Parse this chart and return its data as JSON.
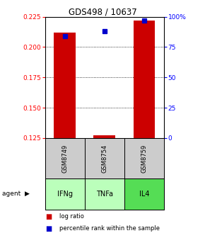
{
  "title": "GDS498 / 10637",
  "samples": [
    "GSM8749",
    "GSM8754",
    "GSM8759"
  ],
  "agents": [
    "IFNg",
    "TNFa",
    "IL4"
  ],
  "log_ratio": [
    0.212,
    0.127,
    0.222
  ],
  "percentile": [
    84,
    88,
    97
  ],
  "ylim_left": [
    0.125,
    0.225
  ],
  "ylim_right": [
    0,
    100
  ],
  "yticks_left": [
    0.125,
    0.15,
    0.175,
    0.2,
    0.225
  ],
  "yticks_right": [
    0,
    25,
    50,
    75,
    100
  ],
  "ytick_labels_right": [
    "0",
    "25",
    "50",
    "75",
    "100%"
  ],
  "bar_color": "#cc0000",
  "dot_color": "#0000cc",
  "agent_colors": [
    "#bbffbb",
    "#bbffbb",
    "#55dd55"
  ],
  "sample_bg": "#cccccc",
  "legend_items": [
    "log ratio",
    "percentile rank within the sample"
  ],
  "legend_colors": [
    "#cc0000",
    "#0000cc"
  ],
  "bar_width": 0.55
}
